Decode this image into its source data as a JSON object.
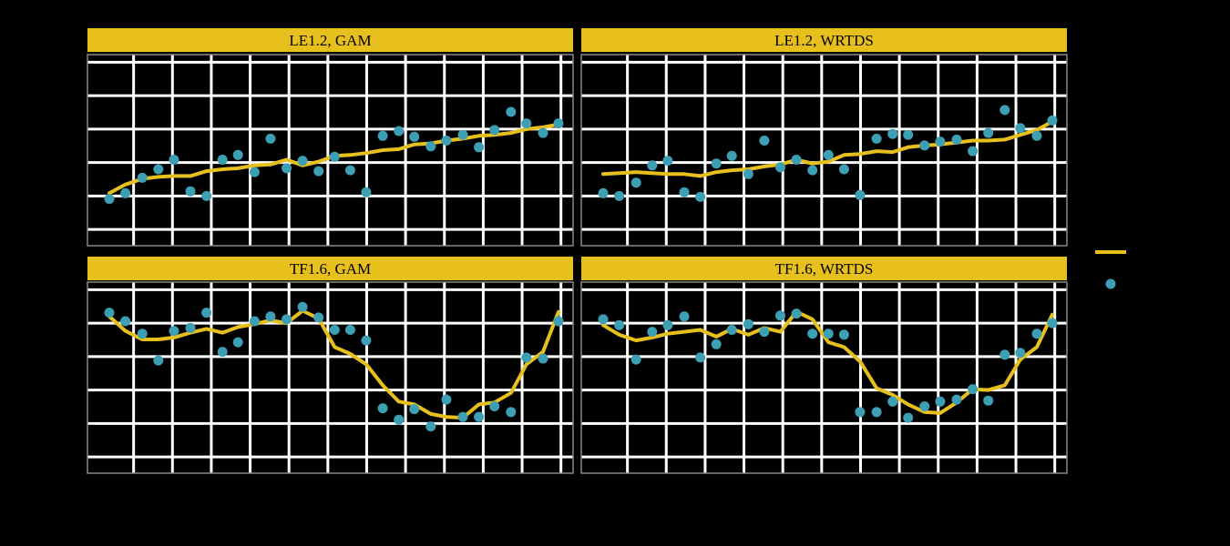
{
  "colors": {
    "background": "#000000",
    "strip_fill": "#e8c01e",
    "strip_text": "#000000",
    "panel_bg": "#000000",
    "grid": "#ffffff",
    "line": "#e8c01e",
    "points": "#3c9fb4"
  },
  "chart_data": [
    {
      "type": "line",
      "title": "LE1.2, GAM",
      "grid": true,
      "xlim": [
        0,
        100
      ],
      "ylim": [
        0,
        100
      ],
      "series": [
        {
          "kind": "line",
          "x": [
            4.5,
            7.8,
            11.3,
            14.6,
            17.8,
            21.2,
            24.5,
            27.8,
            31.0,
            34.4,
            37.7,
            41.0,
            44.3,
            47.6,
            50.9,
            54.1,
            57.4,
            60.8,
            64.1,
            67.3,
            70.7,
            73.9,
            77.3,
            80.6,
            83.8,
            87.2,
            90.4,
            93.8,
            97.0
          ],
          "y": [
            27.5,
            32,
            35,
            36,
            36.5,
            36.5,
            39,
            40,
            40.5,
            42,
            42.5,
            45,
            42,
            44,
            47,
            47.5,
            48.5,
            50,
            50.5,
            53,
            53.5,
            55,
            56,
            57.5,
            58,
            59,
            61,
            62,
            63.5
          ]
        },
        {
          "kind": "points",
          "x": [
            4.5,
            7.8,
            11.3,
            14.6,
            17.8,
            21.2,
            24.5,
            27.8,
            31.0,
            34.4,
            37.7,
            41.0,
            44.3,
            47.6,
            50.9,
            54.1,
            57.4,
            60.8,
            64.1,
            67.3,
            70.7,
            73.9,
            77.3,
            80.6,
            83.8,
            87.2,
            90.4,
            93.8,
            97.0
          ],
          "y": [
            24.5,
            27.5,
            35.5,
            40,
            45,
            28.5,
            26,
            45,
            47.5,
            38.5,
            56,
            40.5,
            44.5,
            39,
            46.5,
            39.5,
            28,
            57.5,
            60,
            57,
            52,
            55,
            58,
            51.5,
            60.5,
            70,
            64,
            59,
            64
          ]
        }
      ]
    },
    {
      "type": "line",
      "title": "LE1.2, WRTDS",
      "grid": true,
      "xlim": [
        0,
        100
      ],
      "ylim": [
        0,
        100
      ],
      "series": [
        {
          "kind": "line",
          "x": [
            4.5,
            7.8,
            11.3,
            14.6,
            17.8,
            21.2,
            24.5,
            27.8,
            31.0,
            34.4,
            37.7,
            41.0,
            44.3,
            47.6,
            50.9,
            54.1,
            57.4,
            60.8,
            64.1,
            67.3,
            70.7,
            73.9,
            77.3,
            80.6,
            83.8,
            87.2,
            90.4,
            93.8,
            97.0
          ],
          "y": [
            37.5,
            38,
            38.5,
            38,
            37.5,
            37.5,
            36.5,
            38.5,
            39.5,
            40,
            41.5,
            42.5,
            45,
            43,
            44,
            47.5,
            48,
            49.5,
            49,
            51.5,
            52.5,
            53,
            54,
            55,
            55,
            55.5,
            58,
            60.5,
            65
          ]
        },
        {
          "kind": "points",
          "x": [
            4.5,
            7.8,
            11.3,
            14.6,
            17.8,
            21.2,
            24.5,
            27.8,
            31.0,
            34.4,
            37.7,
            41.0,
            44.3,
            47.6,
            50.9,
            54.1,
            57.4,
            60.8,
            64.1,
            67.3,
            70.7,
            73.9,
            77.3,
            80.6,
            83.8,
            87.2,
            90.4,
            93.8,
            97.0
          ],
          "y": [
            27.5,
            26,
            33,
            42,
            44.5,
            28,
            25.5,
            43,
            47,
            37.5,
            55,
            41,
            45,
            39.5,
            47.5,
            40,
            26.5,
            56,
            58.5,
            58,
            52.5,
            54.5,
            55.5,
            49.5,
            59,
            71,
            61.5,
            57.5,
            65.5
          ]
        }
      ]
    },
    {
      "type": "line",
      "title": "TF1.6, GAM",
      "grid": true,
      "xlim": [
        0,
        100
      ],
      "ylim": [
        0,
        100
      ],
      "series": [
        {
          "kind": "line",
          "x": [
            4.5,
            7.8,
            11.3,
            14.6,
            17.8,
            21.2,
            24.5,
            27.8,
            31.0,
            34.4,
            37.7,
            41.0,
            44.3,
            47.6,
            50.9,
            54.1,
            57.4,
            60.8,
            64.1,
            67.3,
            70.7,
            73.9,
            77.3,
            80.6,
            83.8,
            87.2,
            90.4,
            93.8,
            97.0
          ],
          "y": [
            82,
            74.5,
            70,
            70,
            71,
            73.5,
            75.5,
            73.5,
            76.5,
            78,
            80,
            78.5,
            85,
            81,
            66,
            62.5,
            57,
            46,
            37.5,
            36,
            31,
            29.5,
            29,
            36,
            37,
            42,
            57,
            63.5,
            84.5
          ]
        },
        {
          "kind": "points",
          "x": [
            4.5,
            7.8,
            11.3,
            14.6,
            17.8,
            21.2,
            24.5,
            27.8,
            31.0,
            34.4,
            37.7,
            41.0,
            44.3,
            47.6,
            50.9,
            54.1,
            57.4,
            60.8,
            64.1,
            67.3,
            70.7,
            73.9,
            77.3,
            80.6,
            83.8,
            87.2,
            90.4,
            93.8,
            97.0
          ],
          "y": [
            84,
            79.5,
            73,
            59,
            74.5,
            76,
            84,
            63.5,
            68.5,
            79.5,
            82,
            80.5,
            87,
            81.5,
            75,
            75,
            69.5,
            34,
            28,
            33.5,
            24.5,
            38.5,
            29.5,
            29.5,
            35,
            32,
            60.5,
            60,
            79.5
          ]
        }
      ]
    },
    {
      "type": "line",
      "title": "TF1.6, WRTDS",
      "grid": true,
      "xlim": [
        0,
        100
      ],
      "ylim": [
        0,
        100
      ],
      "series": [
        {
          "kind": "line",
          "x": [
            4.5,
            7.8,
            11.3,
            14.6,
            17.8,
            21.2,
            24.5,
            27.8,
            31.0,
            34.4,
            37.7,
            41.0,
            44.3,
            47.6,
            50.9,
            54.1,
            57.4,
            60.8,
            64.1,
            67.3,
            70.7,
            73.9,
            77.3,
            80.6,
            83.8,
            87.2,
            90.4,
            93.8,
            97.0
          ],
          "y": [
            77.5,
            72.5,
            69.5,
            71,
            73,
            74,
            75,
            71.5,
            75.5,
            72.5,
            76,
            74,
            84.5,
            80.5,
            68.5,
            66,
            58.5,
            44.5,
            41,
            36,
            32,
            31.5,
            37,
            44,
            43.5,
            46,
            59.5,
            66,
            83
          ]
        },
        {
          "kind": "points",
          "x": [
            4.5,
            7.8,
            11.3,
            14.6,
            17.8,
            21.2,
            24.5,
            27.8,
            31.0,
            34.4,
            37.7,
            41.0,
            44.3,
            47.6,
            50.9,
            54.1,
            57.4,
            60.8,
            64.1,
            67.3,
            70.7,
            73.9,
            77.3,
            80.6,
            83.8,
            87.2,
            90.4,
            93.8,
            97.0
          ],
          "y": [
            80.5,
            77.5,
            59.5,
            74,
            77.5,
            82,
            60.5,
            67.5,
            75,
            78,
            74,
            82.5,
            83.5,
            73,
            73,
            72.5,
            32,
            32,
            37.5,
            29,
            35,
            37.5,
            38.5,
            44,
            38,
            62,
            63,
            73,
            78.5
          ]
        }
      ]
    }
  ]
}
